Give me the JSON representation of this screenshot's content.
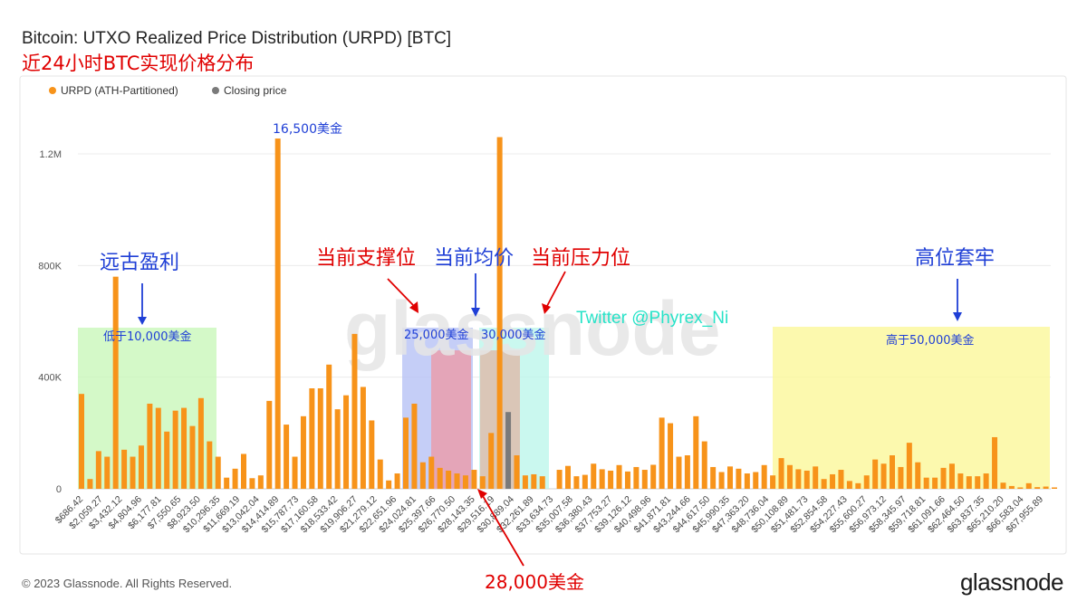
{
  "header": {
    "title": "Bitcoin: UTXO Realized Price Distribution (URPD) [BTC]",
    "subtitle": "近24小时BTC实现价格分布"
  },
  "footer": {
    "copyright": "© 2023 Glassnode. All Rights Reserved.",
    "logo": "glassnode"
  },
  "watermark": "glassnode",
  "twitter_handle": "Twitter @Phyrex_Ni",
  "colors": {
    "urpd": "#f7931a",
    "closing": "#7a7a7a",
    "title_red": "#e00000",
    "annotation_blue": "#1f3fd6",
    "zone_green": "#c6f7b5",
    "zone_blue": "#b7c2f5",
    "zone_pink": "#e7a1b0",
    "zone_tan": "#dcc0b0",
    "zone_cyan": "#b8f5ea",
    "zone_yellow": "#fbf79a",
    "twitter_cyan": "#27e3c8"
  },
  "annotations": {
    "peak_label": "16,500美金",
    "profit_label": "远古盈利",
    "profit_zone": "低于10,000美金",
    "support_label": "当前支撑位",
    "avg_label": "当前均价",
    "pressure_label": "当前压力位",
    "trapped_label": "高位套牢",
    "zone_25k": "25,000美金",
    "zone_30k": "30,000美金",
    "zone_50k": "高于50,000美金",
    "price_28k": "28,000美金"
  },
  "chart_data": {
    "type": "bar",
    "title": "Bitcoin: UTXO Realized Price Distribution (URPD) [BTC]",
    "legend": [
      {
        "name": "URPD (ATH-Partitioned)",
        "color": "#f7931a"
      },
      {
        "name": "Closing price",
        "color": "#7a7a7a"
      }
    ],
    "legend_position": "top-left",
    "grid": true,
    "ylim": [
      0,
      1300000
    ],
    "yticks": [
      0,
      400000,
      800000,
      1200000
    ],
    "ytick_labels": [
      "0",
      "400K",
      "800K",
      "1.2M"
    ],
    "closing_index": 50,
    "xtick_labels": [
      "$686.42",
      "$2,059.27",
      "$3,432.12",
      "$4,804.96",
      "$6,177.81",
      "$7,550.65",
      "$8,923.50",
      "$10,296.35",
      "$11,669.19",
      "$13,042.04",
      "$14,414.89",
      "$15,787.73",
      "$17,160.58",
      "$18,533.42",
      "$19,906.27",
      "$21,279.12",
      "$22,651.96",
      "$24,024.81",
      "$25,397.66",
      "$26,770.50",
      "$28,143.35",
      "$29,516.19",
      "$30,889.04",
      "$32,261.89",
      "$33,634.73",
      "$35,007.58",
      "$36,380.43",
      "$37,753.27",
      "$39,126.12",
      "$40,498.96",
      "$41,871.81",
      "$43,244.66",
      "$44,617.50",
      "$45,990.35",
      "$47,363.20",
      "$48,736.04",
      "$50,108.89",
      "$51,481.73",
      "$52,854.58",
      "$54,227.43",
      "$55,600.27",
      "$56,973.12",
      "$58,345.97",
      "$59,718.81",
      "$61,091.66",
      "$62,464.50",
      "$63,837.35",
      "$65,210.20",
      "$66,583.04",
      "$67,955.89"
    ],
    "values": [
      340000,
      35000,
      135000,
      115000,
      760000,
      140000,
      115000,
      155000,
      305000,
      290000,
      205000,
      280000,
      290000,
      225000,
      325000,
      170000,
      115000,
      40000,
      72000,
      125000,
      38000,
      48000,
      315000,
      1255000,
      230000,
      115000,
      260000,
      360000,
      360000,
      445000,
      285000,
      335000,
      555000,
      365000,
      245000,
      105000,
      30000,
      55000,
      255000,
      305000,
      95000,
      115000,
      75000,
      65000,
      55000,
      48000,
      68000,
      45000,
      200000,
      1260000,
      275000,
      120000,
      48000,
      52000,
      45000,
      0,
      68000,
      82000,
      45000,
      50000,
      90000,
      70000,
      65000,
      85000,
      62000,
      78000,
      68000,
      86000,
      255000,
      235000,
      115000,
      120000,
      260000,
      170000,
      78000,
      60000,
      80000,
      72000,
      55000,
      60000,
      85000,
      48000,
      110000,
      85000,
      70000,
      65000,
      80000,
      35000,
      52000,
      68000,
      28000,
      20000,
      48000,
      105000,
      90000,
      120000,
      78000,
      165000,
      95000,
      40000,
      40000,
      75000,
      90000,
      55000,
      45000,
      45000,
      55000,
      185000,
      22000,
      10000,
      5000,
      20000,
      6000,
      8000,
      5000
    ]
  }
}
